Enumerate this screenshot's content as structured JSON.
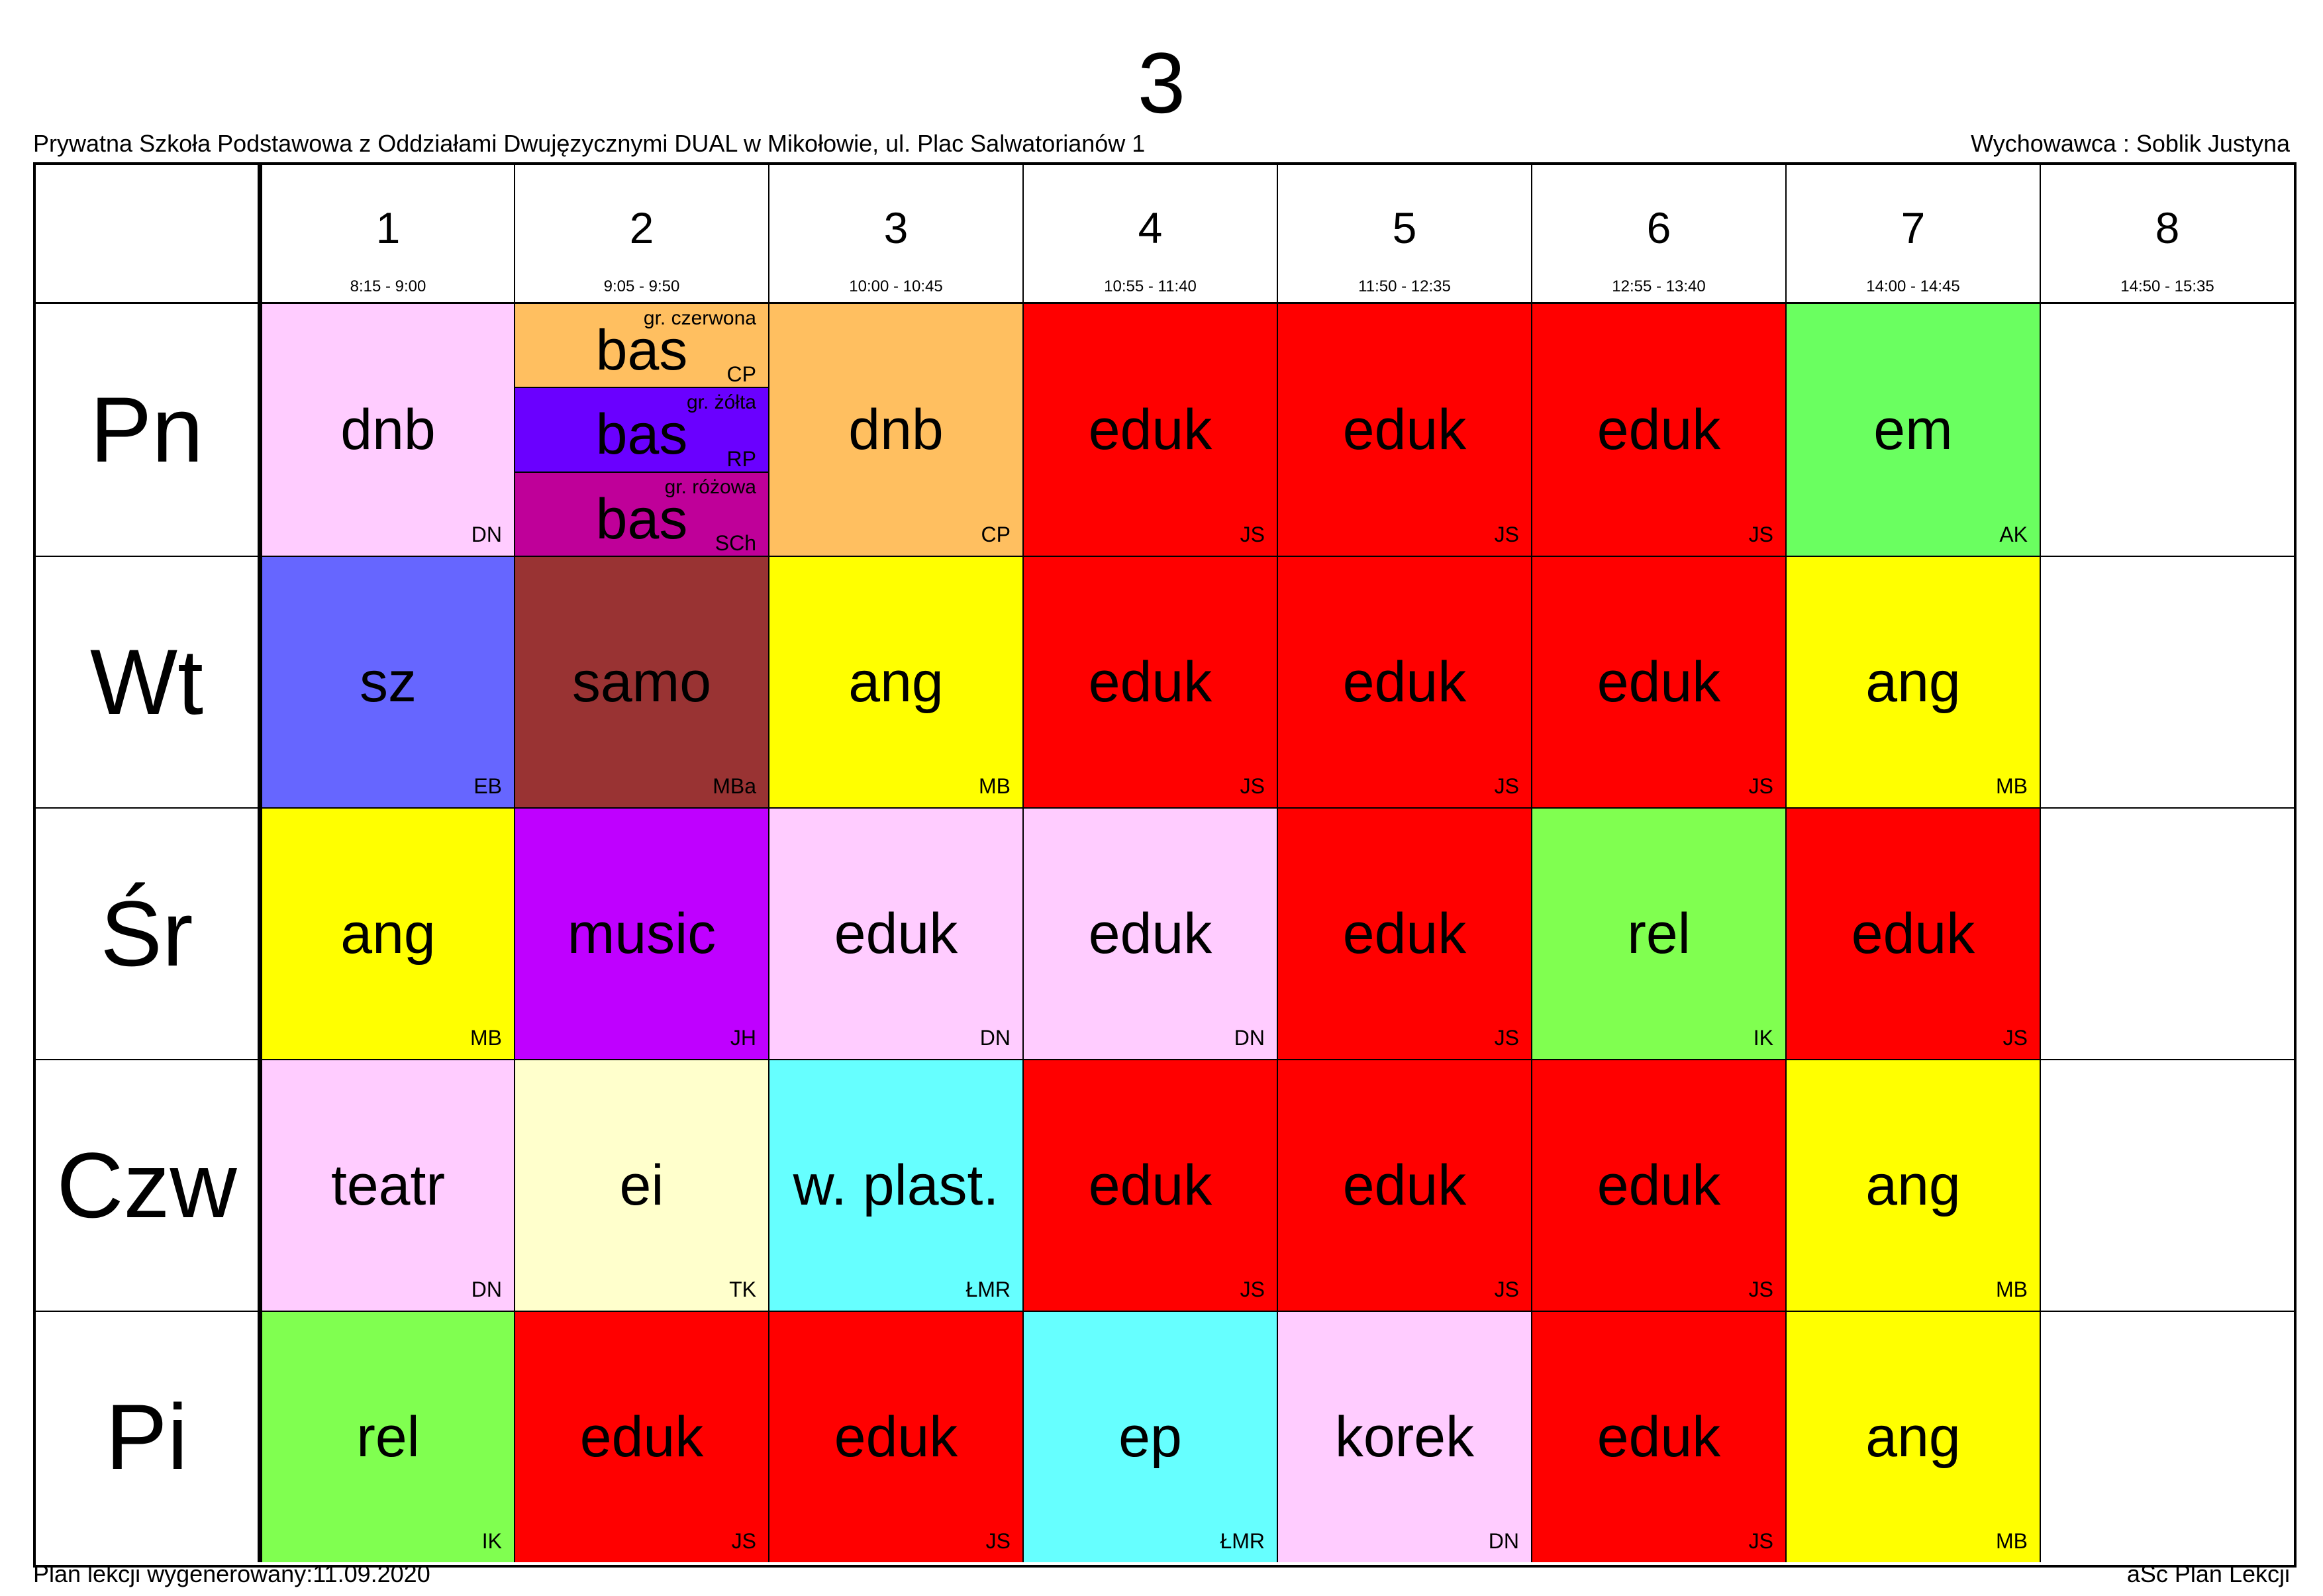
{
  "title": "3",
  "school": "Prywatna Szkoła Podstawowa z Oddziałami Dwujęzycznymi DUAL w Mikołowie, ul. Plac Salwatorianów 1",
  "tutor": "Wychowawca : Soblik Justyna",
  "generated": "Plan lekcji wygenerowany:11.09.2020",
  "software": "aSc Plan Lekcji",
  "periods": [
    {
      "num": "1",
      "time": "8:15 - 9:00"
    },
    {
      "num": "2",
      "time": "9:05 - 9:50"
    },
    {
      "num": "3",
      "time": "10:00 - 10:45"
    },
    {
      "num": "4",
      "time": "10:55 - 11:40"
    },
    {
      "num": "5",
      "time": "11:50 - 12:35"
    },
    {
      "num": "6",
      "time": "12:55 - 13:40"
    },
    {
      "num": "7",
      "time": "14:00 - 14:45"
    },
    {
      "num": "8",
      "time": "14:50 - 15:35"
    }
  ],
  "days": [
    {
      "name": "Pn",
      "lessons": [
        {
          "subject": "dnb",
          "teacher": "DN",
          "color": "#FFCCFF"
        },
        {
          "split": [
            {
              "group": "gr. czerwona",
              "subject": "bas",
              "teacher": "CP",
              "color": "#FFBF60"
            },
            {
              "group": "gr. żółta",
              "subject": "bas",
              "teacher": "RP",
              "color": "#6A00FF"
            },
            {
              "group": "gr. różowa",
              "subject": "bas",
              "teacher": "SCh",
              "color": "#BF0099"
            }
          ]
        },
        {
          "subject": "dnb",
          "teacher": "CP",
          "color": "#FFBF60"
        },
        {
          "subject": "eduk",
          "teacher": "JS",
          "color": "#FF0000"
        },
        {
          "subject": "eduk",
          "teacher": "JS",
          "color": "#FF0000"
        },
        {
          "subject": "eduk",
          "teacher": "JS",
          "color": "#FF0000"
        },
        {
          "subject": "em",
          "teacher": "AK",
          "color": "#6AFF60"
        },
        {
          "subject": "",
          "teacher": "",
          "color": "#FFFFFF"
        }
      ]
    },
    {
      "name": "Wt",
      "lessons": [
        {
          "subject": "sz",
          "teacher": "EB",
          "color": "#6666FF"
        },
        {
          "subject": "samo",
          "teacher": "MBa",
          "color": "#993333"
        },
        {
          "subject": "ang",
          "teacher": "MB",
          "color": "#FFFF00"
        },
        {
          "subject": "eduk",
          "teacher": "JS",
          "color": "#FF0000"
        },
        {
          "subject": "eduk",
          "teacher": "JS",
          "color": "#FF0000"
        },
        {
          "subject": "eduk",
          "teacher": "JS",
          "color": "#FF0000"
        },
        {
          "subject": "ang",
          "teacher": "MB",
          "color": "#FFFF00"
        },
        {
          "subject": "",
          "teacher": "",
          "color": "#FFFFFF"
        }
      ]
    },
    {
      "name": "Śr",
      "lessons": [
        {
          "subject": "ang",
          "teacher": "MB",
          "color": "#FFFF00"
        },
        {
          "subject": "music",
          "teacher": "JH",
          "color": "#BF00FF"
        },
        {
          "subject": "eduk",
          "teacher": "DN",
          "color": "#FFCCFF"
        },
        {
          "subject": "eduk",
          "teacher": "DN",
          "color": "#FFCCFF"
        },
        {
          "subject": "eduk",
          "teacher": "JS",
          "color": "#FF0000"
        },
        {
          "subject": "rel",
          "teacher": "IK",
          "color": "#80FF50"
        },
        {
          "subject": "eduk",
          "teacher": "JS",
          "color": "#FF0000"
        },
        {
          "subject": "",
          "teacher": "",
          "color": "#FFFFFF"
        }
      ]
    },
    {
      "name": "Czw",
      "lessons": [
        {
          "subject": "teatr",
          "teacher": "DN",
          "color": "#FFCCFF"
        },
        {
          "subject": "ei",
          "teacher": "TK",
          "color": "#FFFFCC"
        },
        {
          "subject": "w. plast.",
          "teacher": "ŁMR",
          "color": "#66FFFF"
        },
        {
          "subject": "eduk",
          "teacher": "JS",
          "color": "#FF0000"
        },
        {
          "subject": "eduk",
          "teacher": "JS",
          "color": "#FF0000"
        },
        {
          "subject": "eduk",
          "teacher": "JS",
          "color": "#FF0000"
        },
        {
          "subject": "ang",
          "teacher": "MB",
          "color": "#FFFF00"
        },
        {
          "subject": "",
          "teacher": "",
          "color": "#FFFFFF"
        }
      ]
    },
    {
      "name": "Pi",
      "lessons": [
        {
          "subject": "rel",
          "teacher": "IK",
          "color": "#80FF50"
        },
        {
          "subject": "eduk",
          "teacher": "JS",
          "color": "#FF0000"
        },
        {
          "subject": "eduk",
          "teacher": "JS",
          "color": "#FF0000"
        },
        {
          "subject": "ep",
          "teacher": "ŁMR",
          "color": "#66FFFF"
        },
        {
          "subject": "korek",
          "teacher": "DN",
          "color": "#FFCCFF"
        },
        {
          "subject": "eduk",
          "teacher": "JS",
          "color": "#FF0000"
        },
        {
          "subject": "ang",
          "teacher": "MB",
          "color": "#FFFF00"
        },
        {
          "subject": "",
          "teacher": "",
          "color": "#FFFFFF"
        }
      ]
    }
  ]
}
